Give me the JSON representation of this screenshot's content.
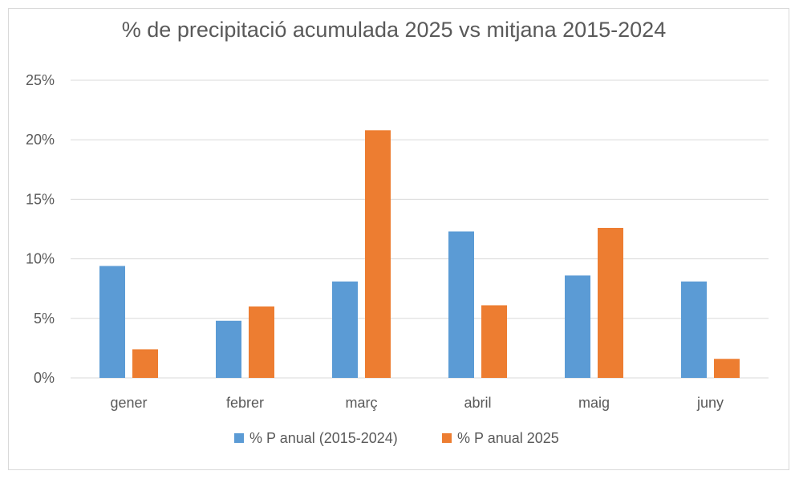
{
  "chart_data": {
    "type": "bar",
    "title": "% de precipitació acumulada 2025 vs mitjana 2015-2024",
    "categories": [
      "gener",
      "febrer",
      "març",
      "abril",
      "maig",
      "juny"
    ],
    "series": [
      {
        "name": "% P anual (2015-2024)",
        "color": "#5b9bd5",
        "values": [
          9.4,
          4.8,
          8.1,
          12.3,
          8.6,
          8.1
        ]
      },
      {
        "name": "% P anual 2025",
        "color": "#ed7d31",
        "values": [
          2.4,
          6.0,
          20.8,
          6.1,
          12.6,
          1.6
        ]
      }
    ],
    "y_ticks": [
      "0%",
      "5%",
      "10%",
      "15%",
      "20%",
      "25%"
    ],
    "ylim": [
      0,
      25
    ],
    "xlabel": "",
    "ylabel": "",
    "grid": true,
    "legend_position": "bottom"
  }
}
